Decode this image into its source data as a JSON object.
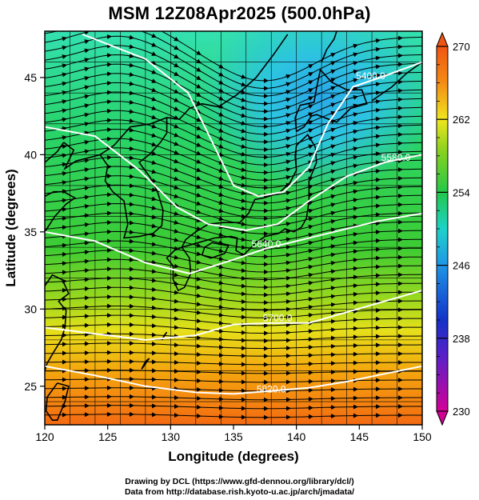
{
  "title": "MSM 12Z08Apr2025 (500.0hPa)",
  "axes": {
    "xlabel": "Longitude (degrees)",
    "ylabel": "Latitude  (degrees)",
    "xlim": [
      120,
      150
    ],
    "ylim": [
      22.5,
      48
    ],
    "xticks": [
      120,
      125,
      130,
      135,
      140,
      145,
      150
    ],
    "yticks": [
      25,
      30,
      35,
      40,
      45
    ],
    "grid": true,
    "grid_interval_deg": 2
  },
  "colorbar": {
    "min": 230,
    "max": 270,
    "labels": [
      270,
      262,
      254,
      246,
      238,
      230
    ],
    "colors": [
      "#d40096",
      "#2a2ac8",
      "#1fd2e0",
      "#22c84a",
      "#f0e61e",
      "#f05514"
    ]
  },
  "contours": [
    {
      "label": "5400.0",
      "lon": 145.9,
      "lat": 44.9
    },
    {
      "label": "5580.0",
      "lon": 147.9,
      "lat": 39.6
    },
    {
      "label": "5640.0",
      "lon": 137.6,
      "lat": 34.0
    },
    {
      "label": "5700.0",
      "lon": 138.5,
      "lat": 29.2
    },
    {
      "label": "5820.0",
      "lon": 138.0,
      "lat": 24.6
    }
  ],
  "chart_data": {
    "type": "heatmap",
    "title": "MSM 12Z08Apr2025 (500.0hPa)",
    "xlabel": "Longitude (degrees)",
    "ylabel": "Latitude  (degrees)",
    "xlim": [
      120,
      150
    ],
    "ylim": [
      22.5,
      48
    ],
    "colorbar_range": [
      230,
      270
    ],
    "contour_labels": [
      "5400.0",
      "5580.0",
      "5640.0",
      "5700.0",
      "5820.0"
    ]
  },
  "credits": {
    "line1": "Drawing by DCL (https://www.gfd-dennou.org/library/dcl/)",
    "line2": "Data from http://database.rish.kyoto-u.ac.jp/arch/jmadata/"
  }
}
